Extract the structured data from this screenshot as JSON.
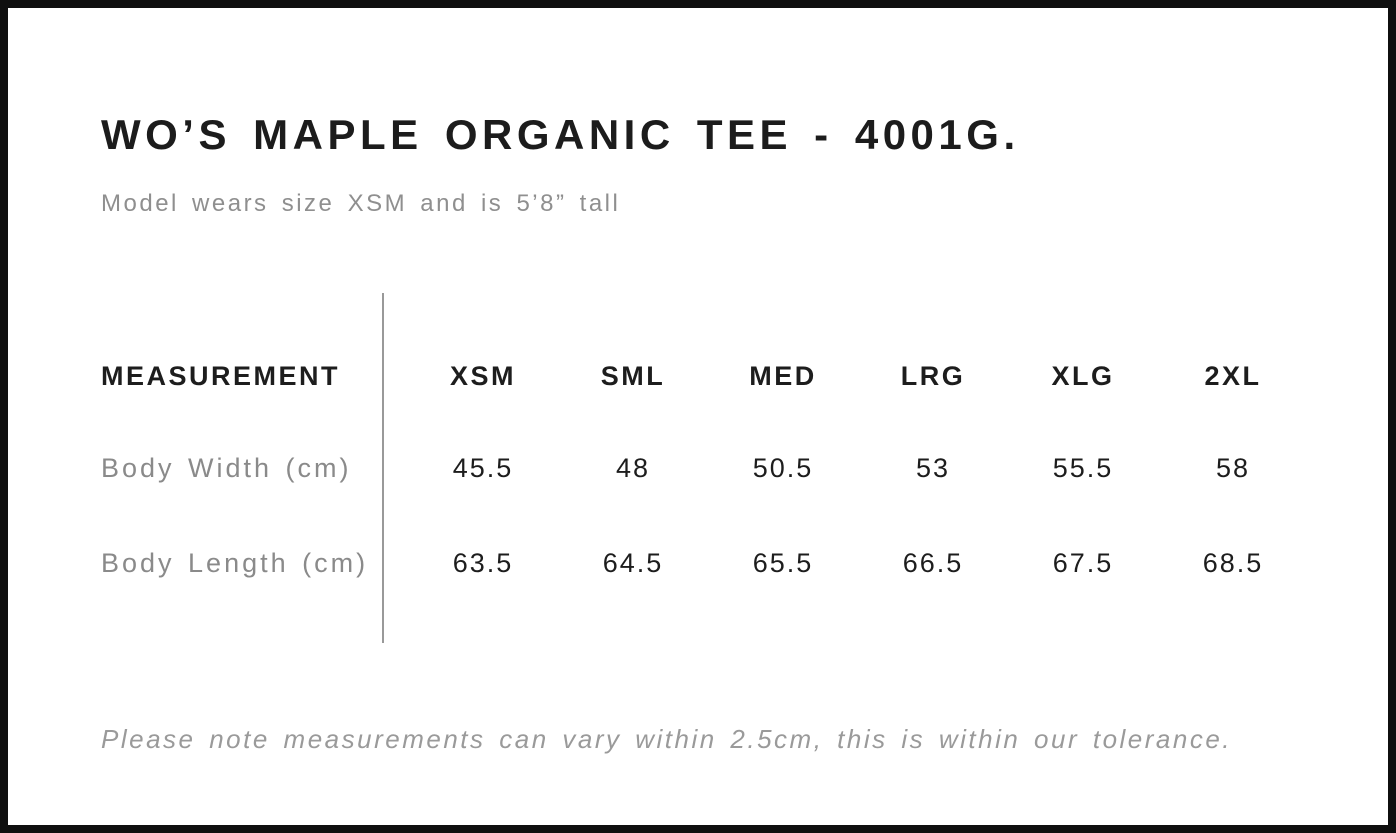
{
  "page": {
    "title": "WO’S MAPLE ORGANIC TEE - 4001G.",
    "subtitle": "Model wears size XSM and is 5’8” tall",
    "tolerance_note": "Please note measurements can vary within 2.5cm, this is within our tolerance."
  },
  "size_chart": {
    "header_label": "MEASUREMENT",
    "columns": [
      "XSM",
      "SML",
      "MED",
      "LRG",
      "XLG",
      "2XL"
    ],
    "rows": [
      {
        "label": "Body Width (cm)",
        "values": [
          "45.5",
          "48",
          "50.5",
          "53",
          "55.5",
          "58"
        ]
      },
      {
        "label": "Body Length (cm)",
        "values": [
          "63.5",
          "64.5",
          "65.5",
          "66.5",
          "67.5",
          "68.5"
        ]
      }
    ]
  },
  "colors": {
    "text_primary": "#1d1d1d",
    "text_secondary": "#8f8f8f",
    "divider": "#999999",
    "border": "#0f0f0f",
    "background": "#ffffff"
  }
}
